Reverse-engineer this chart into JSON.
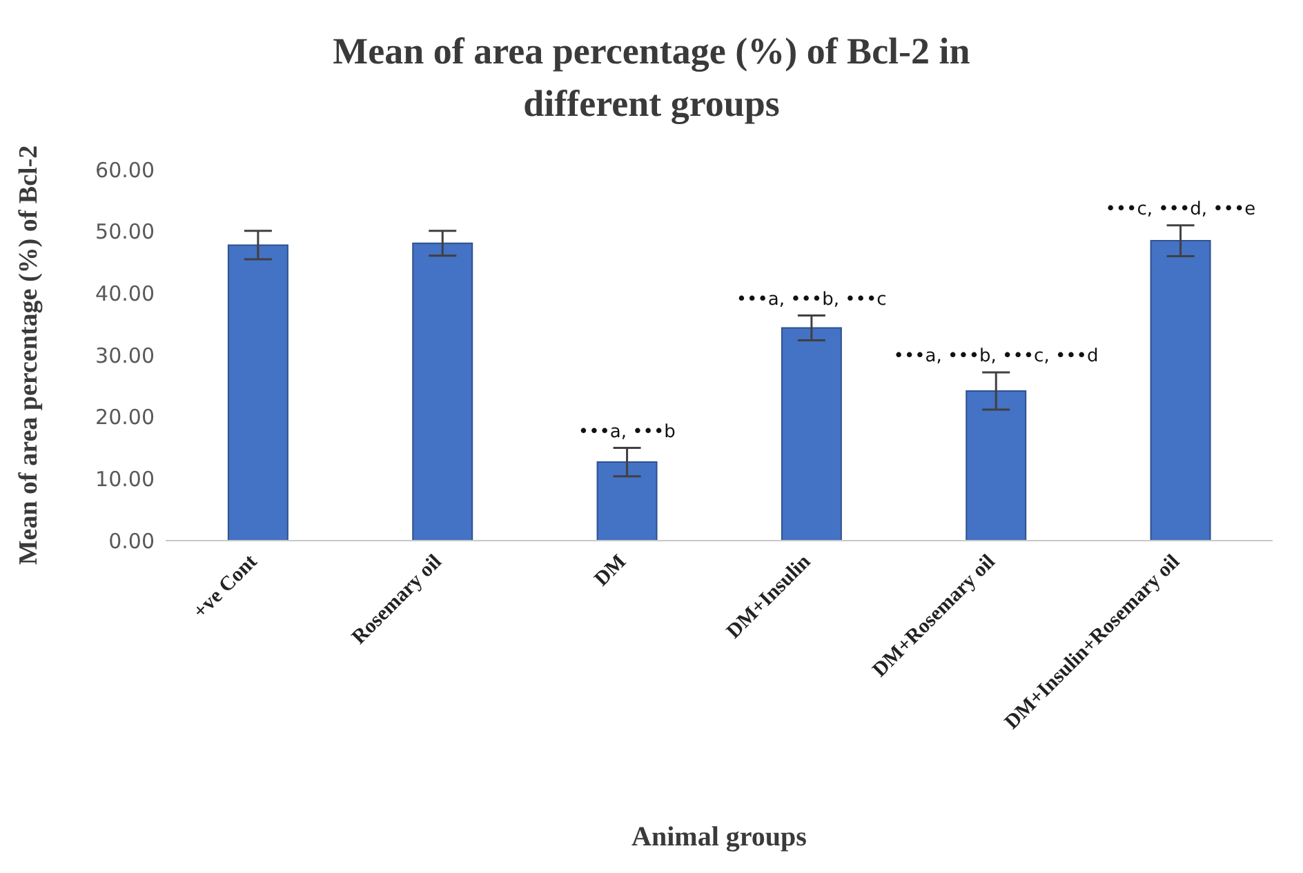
{
  "chart_data": {
    "type": "bar",
    "title": "Mean of area percentage (%) of Bcl-2 in different  groups",
    "xlabel": "Animal  groups",
    "ylabel": "Mean of area percentage (%) of Bcl-2",
    "categories": [
      "+ve Cont",
      "Rosemary oil",
      "DM",
      "DM+Insulin",
      "DM+Rosemary oil",
      "DM+Insulin+Rosemary oil"
    ],
    "values": [
      47.8,
      48.1,
      12.7,
      34.4,
      24.2,
      48.5
    ],
    "errors": [
      2.3,
      2.0,
      2.3,
      2.0,
      3.0,
      2.5
    ],
    "color": "#4472c4",
    "ylim": [
      0,
      60
    ],
    "yticks": [
      {
        "value": 0,
        "label": "0.00"
      },
      {
        "value": 10,
        "label": "10.00"
      },
      {
        "value": 20,
        "label": "20.00"
      },
      {
        "value": 30,
        "label": "30.00"
      },
      {
        "value": 40,
        "label": "40.00"
      },
      {
        "value": 50,
        "label": "50.00"
      },
      {
        "value": 60,
        "label": "60.00"
      }
    ],
    "grid": false,
    "legend": false,
    "annotations": [
      {
        "text": "•••a, •••b",
        "x": "DM",
        "y": 15.0
      },
      {
        "text": "•••a, •••b, •••c",
        "x": "DM+Insulin",
        "y": 36.4
      },
      {
        "text": "•••a, •••b, •••c, •••d",
        "x": "DM+Rosemary oil",
        "y": 27.2
      },
      {
        "text": "•••c, •••d, •••e",
        "x": "DM+Insulin+Rosemary oil",
        "y": 51.0
      }
    ]
  }
}
